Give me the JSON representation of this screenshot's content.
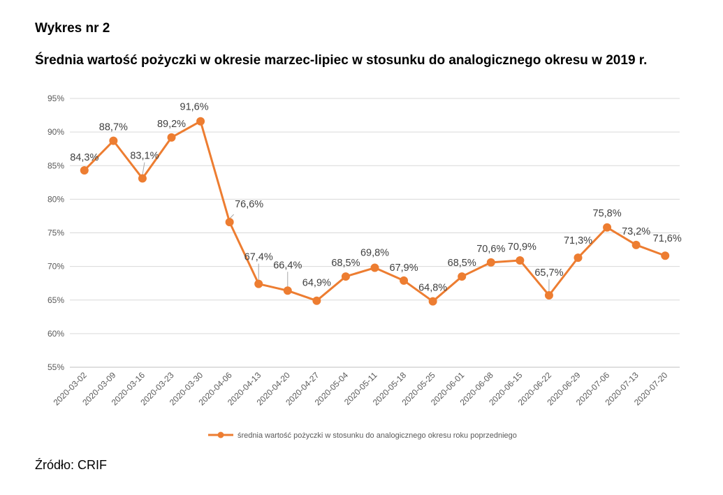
{
  "header": {
    "label": "Wykres nr 2",
    "title": "Średnia wartość pożyczki w okresie marzec-lipiec w stosunku do analogicznego okresu w 2019 r."
  },
  "footer": {
    "source": "Źródło: CRIF"
  },
  "colors": {
    "series": "#ED7D31",
    "grid": "#D9D9D9",
    "leader": "#A6A6A6"
  },
  "chart_data": {
    "type": "line",
    "title": "Średnia wartość pożyczki w okresie marzec-lipiec w stosunku do analogicznego okresu w 2019 r.",
    "xlabel": "",
    "ylabel": "",
    "ylim": [
      55,
      95
    ],
    "yticks": [
      55,
      60,
      65,
      70,
      75,
      80,
      85,
      90,
      95
    ],
    "ytick_labels": [
      "55%",
      "60%",
      "65%",
      "70%",
      "75%",
      "80%",
      "85%",
      "90%",
      "95%"
    ],
    "grid": true,
    "legend_position": "bottom",
    "categories": [
      "2020-03-02",
      "2020-03-09",
      "2020-03-16",
      "2020-03-23",
      "2020-03-30",
      "2020-04-06",
      "2020-04-13",
      "2020-04-20",
      "2020-04-27",
      "2020-05-04",
      "2020-05-11",
      "2020-05-18",
      "2020-05-25",
      "2020-06-01",
      "2020-06-08",
      "2020-06-15",
      "2020-06-22",
      "2020-06-29",
      "2020-07-06",
      "2020-07-13",
      "2020-07-20"
    ],
    "series": [
      {
        "name": "średnia wartość pożyczki w stosunku do analogicznego okresu roku poprzedniego",
        "values": [
          84.3,
          88.7,
          83.1,
          89.2,
          91.6,
          76.6,
          67.4,
          66.4,
          64.9,
          68.5,
          69.8,
          67.9,
          64.8,
          68.5,
          70.6,
          70.9,
          65.7,
          71.3,
          75.8,
          73.2,
          71.6
        ],
        "data_labels": [
          "84,3%",
          "88,7%",
          "83,1%",
          "89,2%",
          "91,6%",
          "76,6%",
          "67,4%",
          "66,4%",
          "64,9%",
          "68,5%",
          "69,8%",
          "67,9%",
          "64,8%",
          "68,5%",
          "70,6%",
          "70,9%",
          "65,7%",
          "71,3%",
          "75,8%",
          "73,2%",
          "71,6%"
        ]
      }
    ]
  }
}
